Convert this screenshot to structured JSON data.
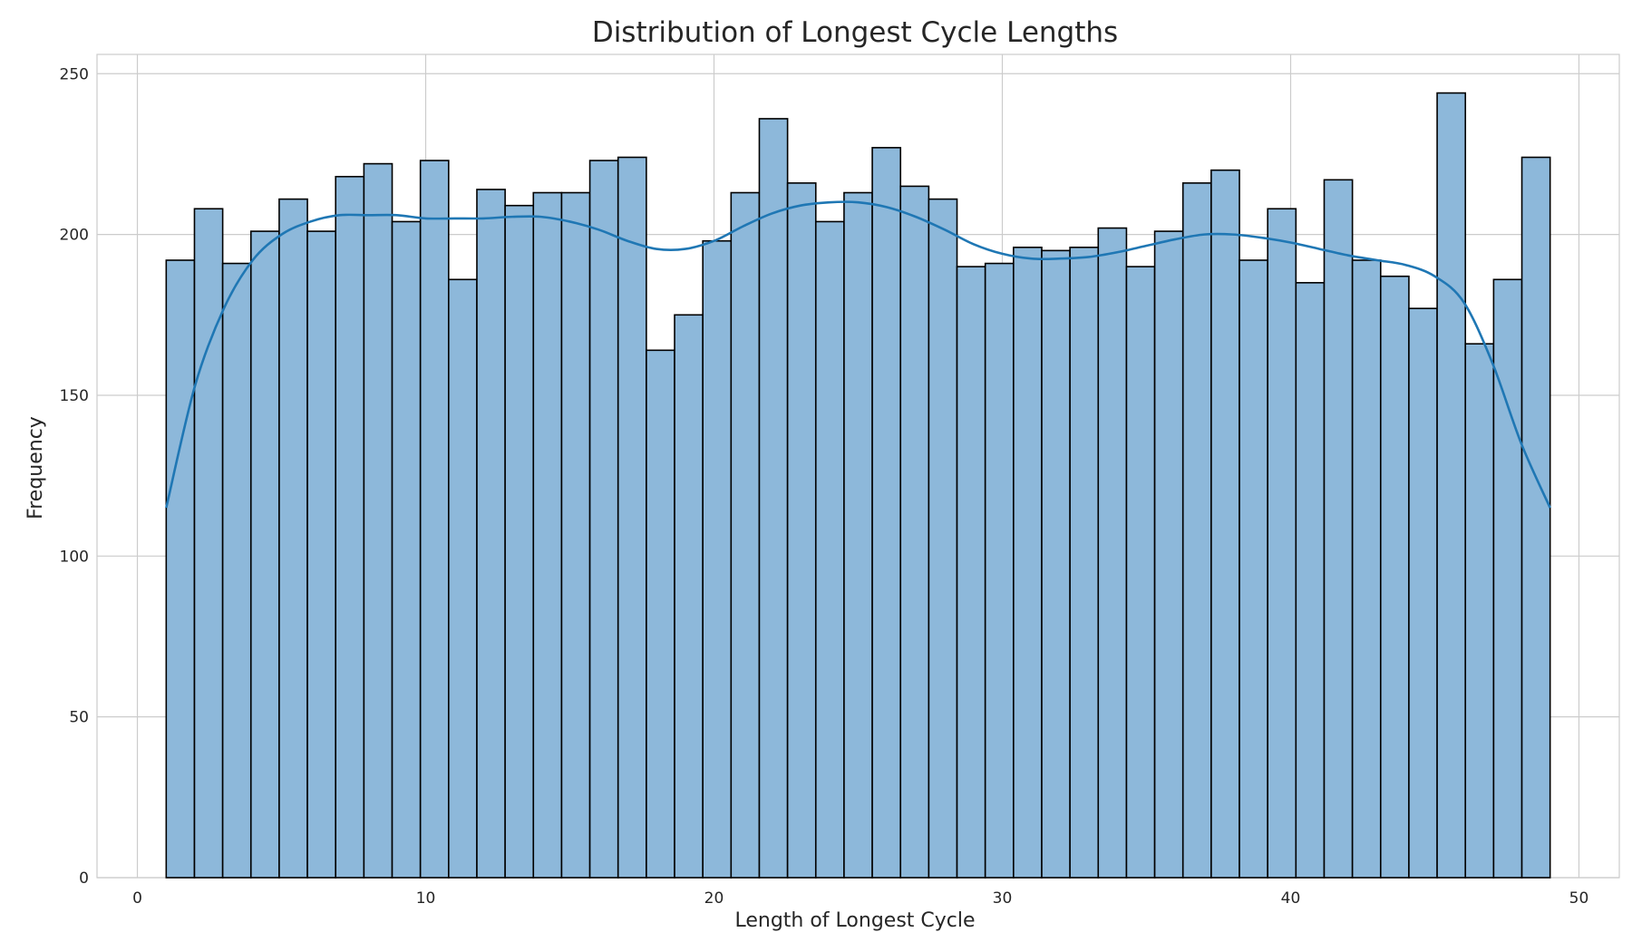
{
  "chart_data": {
    "type": "bar",
    "title": "Distribution of Longest Cycle Lengths",
    "xlabel": "Length of Longest Cycle",
    "ylabel": "Frequency",
    "xlim": [
      -1.4,
      51.4
    ],
    "ylim": [
      0,
      256
    ],
    "xticks": [
      0,
      10,
      20,
      30,
      40,
      50
    ],
    "yticks": [
      0,
      50,
      100,
      150,
      200,
      250
    ],
    "grid": true,
    "bins": {
      "start": 1,
      "end": 49,
      "count": 49
    },
    "values": [
      192,
      208,
      191,
      201,
      211,
      201,
      218,
      222,
      204,
      223,
      186,
      214,
      209,
      213,
      213,
      223,
      224,
      164,
      175,
      198,
      213,
      236,
      216,
      204,
      213,
      227,
      215,
      211,
      190,
      191,
      196,
      195,
      196,
      202,
      190,
      201,
      216,
      220,
      192,
      208,
      185,
      217,
      192,
      187,
      177,
      244,
      166,
      186,
      224
    ],
    "kde": {
      "x": [
        1,
        2,
        3,
        4,
        5,
        6,
        7,
        8,
        9,
        10,
        11,
        12,
        13,
        14,
        15,
        16,
        17,
        18,
        19,
        20,
        21,
        22,
        23,
        24,
        25,
        26,
        27,
        28,
        29,
        30,
        31,
        32,
        33,
        34,
        35,
        36,
        37,
        38,
        39,
        40,
        41,
        42,
        43,
        44,
        45,
        46,
        47,
        48,
        49
      ],
      "y": [
        115,
        153,
        177,
        192,
        200,
        204,
        206,
        206,
        206,
        205,
        205,
        205,
        205.5,
        205.5,
        204,
        201.5,
        198,
        195.5,
        195.5,
        198,
        202.5,
        206.5,
        209,
        210,
        210,
        208.5,
        205.5,
        201.5,
        197,
        194,
        192.5,
        192.5,
        193,
        194.5,
        196.5,
        198.5,
        200,
        200,
        199,
        197.5,
        195.5,
        193.5,
        192,
        190.5,
        187,
        179,
        160,
        135,
        115
      ]
    },
    "colors": {
      "bar_fill": "#8db8da",
      "bar_edge": "#000000",
      "kde_line": "#1f77b4",
      "grid": "#cccccc",
      "spine": "#cccccc",
      "text": "#262626"
    }
  }
}
